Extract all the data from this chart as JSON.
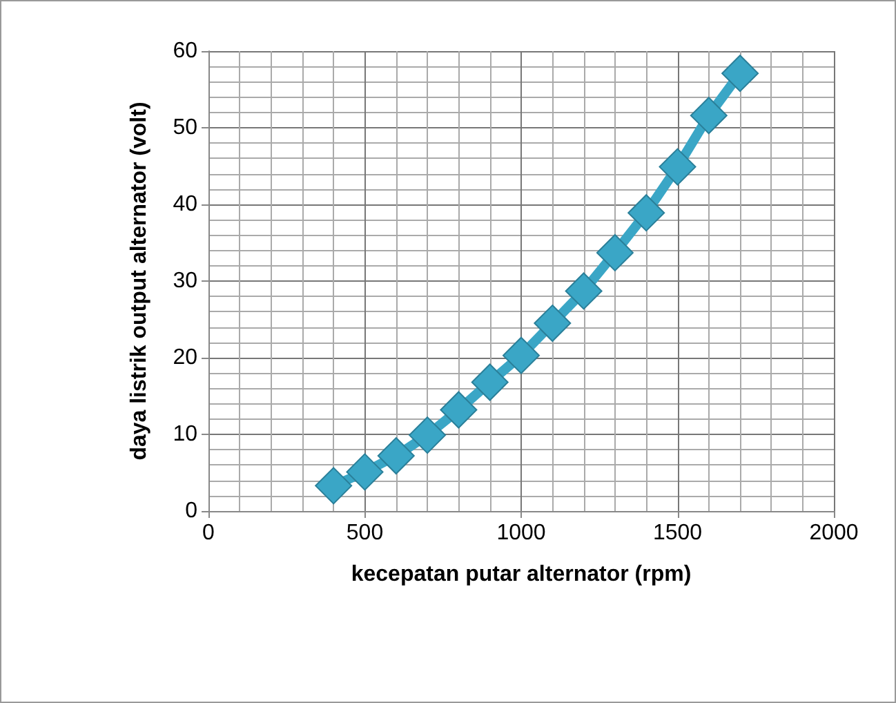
{
  "chart_data": {
    "type": "line",
    "xlabel": "kecepatan putar alternator (rpm)",
    "ylabel": "daya listrik output alternator (volt)",
    "x": [
      400,
      500,
      600,
      700,
      800,
      900,
      1000,
      1100,
      1200,
      1300,
      1400,
      1500,
      1600,
      1700
    ],
    "series": [
      {
        "color": "#3aa6c6",
        "values": [
          3.3,
          5.1,
          7.2,
          9.9,
          13.2,
          16.8,
          20.3,
          24.5,
          28.7,
          33.7,
          38.9,
          44.9,
          51.6,
          57.1
        ]
      }
    ],
    "xlim": [
      0,
      2000
    ],
    "xticks": [
      0,
      500,
      1000,
      1500,
      2000
    ],
    "ylim": [
      0,
      60
    ],
    "yticks": [
      0,
      10,
      20,
      30,
      40,
      50,
      60
    ],
    "grid": true,
    "marker": "diamond",
    "line_style": "solid"
  }
}
